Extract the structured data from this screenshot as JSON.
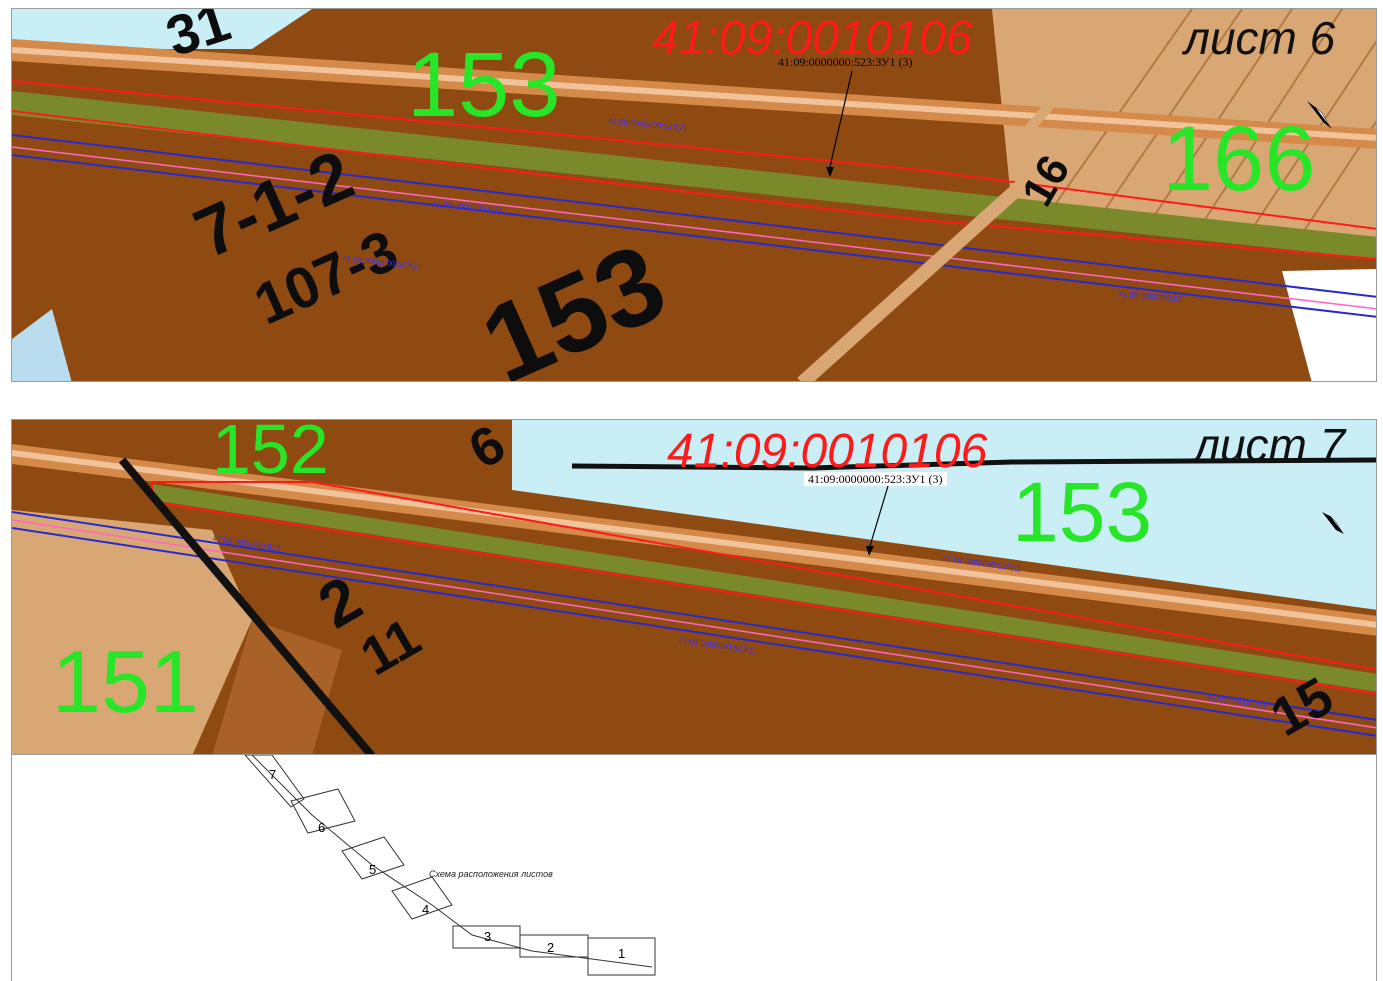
{
  "sheets": [
    {
      "title": "лист 6",
      "quarter": "41:09:0010106",
      "parcel_callout": "41:09:0000000:523:ЗУ1 (3)",
      "blocks": [
        "153",
        "166"
      ],
      "plan_numbers": [
        "7-1-2",
        "107-3",
        "153",
        "16",
        "31"
      ],
      "tiny_labels": [
        "41:09:0000000:523(2)",
        "41:09:0000000:5(1)",
        "41:09:0000000:523(1)",
        "41:09:0000000:52"
      ]
    },
    {
      "title": "лист 7",
      "quarter": "41:09:0010106",
      "parcel_callout": "41:09:0000000:523:ЗУ1 (3)",
      "blocks": [
        "152",
        "153",
        "151"
      ],
      "plan_numbers": [
        "2",
        "11",
        "6",
        "15"
      ],
      "tiny_labels": [
        "41:09:0000000:523",
        "41:09:0000000:523(1)",
        "41:09:0000000:523(1)",
        "41:09:0000000:5"
      ]
    }
  ],
  "layout_scheme": {
    "caption": "Схема расположения листов",
    "sheet_numbers": [
      "1",
      "2",
      "3",
      "4",
      "5",
      "6",
      "7"
    ]
  },
  "colors": {
    "parcel_brown": "#8f4a12",
    "light_tan": "#d9a774",
    "water": "#c9eef5",
    "road_stripe": "#d58a4a",
    "vegetation": "#7a8a2a",
    "boundary_red": "#ff1a1a",
    "boundary_blue": "#2a2acc",
    "block_label_green": "#27e627"
  },
  "icons": [
    "north-arrow-icon"
  ]
}
